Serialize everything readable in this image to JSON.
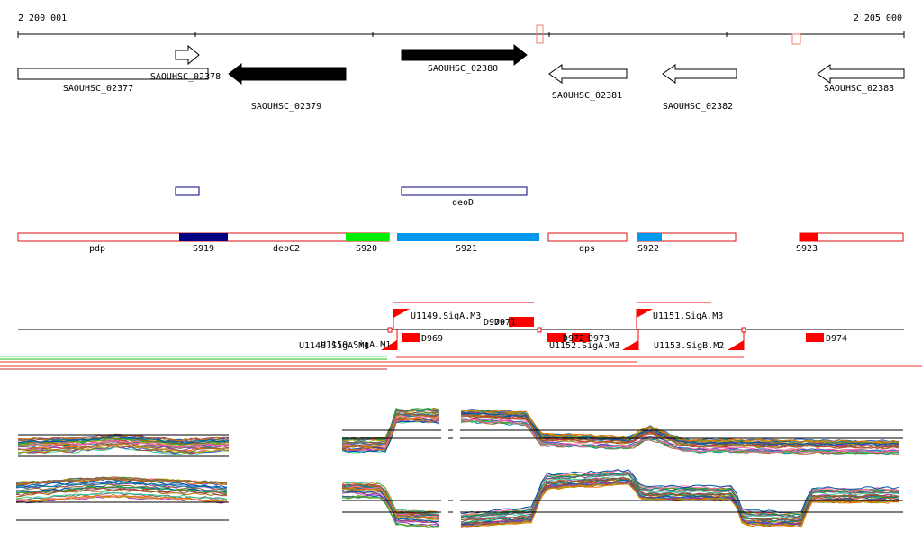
{
  "ruler": {
    "start_label": "2 200 001",
    "end_label": "2 205 000"
  },
  "genes": [
    {
      "label": "SAOUHSC_02377"
    },
    {
      "label": "SAOUHSC_02378"
    },
    {
      "label": "SAOUHSC_02379"
    },
    {
      "label": "SAOUHSC_02380"
    },
    {
      "label": "SAOUHSC_02381"
    },
    {
      "label": "SAOUHSC_02382"
    },
    {
      "label": "SAOUHSC_02383"
    }
  ],
  "regulons": [
    {
      "label": "deoD"
    }
  ],
  "segments": [
    {
      "label": "pdp"
    },
    {
      "label": "S919"
    },
    {
      "label": "deoC2"
    },
    {
      "label": "S920"
    },
    {
      "label": "S921"
    },
    {
      "label": "dps"
    },
    {
      "label": "S922"
    },
    {
      "label": "S923"
    }
  ],
  "promoters": [
    {
      "label": "U1149.SigA.M3"
    },
    {
      "label": "U1151.SigA.M3"
    },
    {
      "label": "U1148.SigA.M1"
    },
    {
      "label": "U1150.SigA.M1"
    },
    {
      "label": "U1152.SigA.M3"
    },
    {
      "label": "U1153.SigB.M2"
    }
  ],
  "terminators": [
    {
      "label": "D970"
    },
    {
      "label": "D971"
    },
    {
      "label": "D969"
    },
    {
      "label": "D972"
    },
    {
      "label": "D973"
    },
    {
      "label": "D974"
    }
  ],
  "colors": {
    "accent_red": "#ff0000",
    "dark_blue": "#000080",
    "light_blue": "#0099ee",
    "green": "#00ee00",
    "gene_black": "#000000"
  }
}
